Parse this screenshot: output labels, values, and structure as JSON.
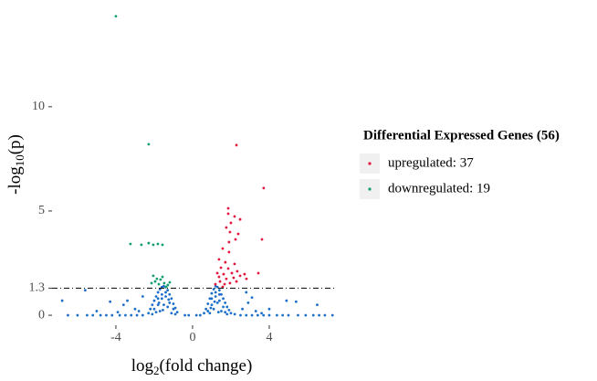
{
  "chart_data": {
    "type": "scatter",
    "xlabel": [
      "log",
      "2",
      "(fold change)"
    ],
    "ylabel": [
      "-log",
      "10",
      "(p)"
    ],
    "legend_title": "Differential Expressed Genes (56)",
    "xlim": [
      -7.33,
      7.43
    ],
    "ylim": [
      -0.48,
      14.9
    ],
    "xticks": [
      -4,
      0,
      4
    ],
    "yticks": [
      0,
      1.3,
      5,
      10
    ],
    "hline": 1.3,
    "series": [
      {
        "name": "upregulated: 37",
        "color": "#e3173e",
        "x": [
          2.29,
          3.71,
          1.86,
          1.86,
          2.19,
          2.48,
          2.0,
          1.76,
          1.95,
          2.38,
          3.62,
          1.9,
          2.24,
          1.57,
          1.9,
          1.38,
          1.71,
          2.19,
          1.48,
          1.86,
          2.33,
          1.29,
          1.62,
          2.05,
          2.71,
          3.43,
          1.38,
          1.76,
          2.14,
          2.48,
          1.43,
          1.95,
          1.19,
          1.67,
          2.29,
          2.81,
          1.57
        ],
        "y": [
          8.16,
          6.1,
          5.13,
          4.87,
          4.74,
          4.6,
          4.43,
          4.21,
          3.99,
          3.9,
          3.64,
          3.51,
          3.64,
          3.2,
          3.03,
          2.68,
          2.54,
          2.46,
          2.28,
          2.24,
          2.11,
          2.02,
          1.97,
          2.02,
          1.97,
          2.02,
          1.84,
          1.75,
          1.8,
          1.89,
          1.62,
          1.54,
          1.49,
          1.49,
          1.62,
          1.75,
          1.36
        ]
      },
      {
        "name": "downregulated: 19",
        "color": "#139e6e",
        "x": [
          -4.0,
          -2.29,
          -3.24,
          -2.67,
          -2.29,
          -2.05,
          -1.81,
          -1.57,
          -2.05,
          -1.86,
          -1.67,
          -1.48,
          -2.14,
          -1.29,
          -1.76,
          -1.95,
          -1.57,
          -1.38,
          -1.19
        ],
        "y": [
          14.34,
          8.2,
          3.42,
          3.38,
          3.46,
          3.38,
          3.42,
          3.38,
          1.89,
          1.75,
          1.71,
          1.54,
          1.54,
          1.45,
          1.49,
          1.62,
          1.84,
          1.36,
          1.58
        ]
      },
      {
        "color": "#1c6fc8",
        "x": [
          -2.3,
          -2.2,
          -2.1,
          -2.0,
          -1.9,
          -1.8,
          -1.7,
          -1.6,
          -1.5,
          -1.4,
          -1.3,
          -1.2,
          -1.1,
          -1.0,
          -0.9,
          -0.8,
          -2.0,
          -1.8,
          -1.6,
          -1.4,
          -1.2,
          -1.0,
          -1.7,
          -1.5,
          -1.3,
          -1.9,
          -1.1,
          -1.6,
          -1.4,
          -1.8,
          -2.1,
          -0.9,
          -1.55,
          -1.25,
          -1.75,
          0.6,
          0.7,
          0.8,
          0.9,
          1.0,
          1.1,
          1.2,
          1.3,
          1.4,
          1.5,
          1.6,
          1.7,
          1.8,
          1.9,
          2.0,
          0.8,
          1.0,
          1.2,
          1.4,
          1.6,
          1.1,
          1.3,
          1.5,
          0.9,
          1.7,
          1.2,
          1.0,
          1.4,
          1.8,
          2.2,
          1.35,
          1.15,
          0.95,
          -6.8,
          -5.6,
          -4.3,
          -3.6,
          -3.4,
          -3.0,
          -2.6,
          -2.8,
          2.6,
          2.9,
          3.3,
          3.6,
          4.0,
          4.9,
          5.4,
          6.5,
          -5.0,
          -3.9,
          2.8,
          3.1,
          -6.5,
          -6.0,
          -5.5,
          -5.2,
          -4.8,
          -4.5,
          -4.2,
          -3.8,
          -3.5,
          -3.2,
          -2.9,
          -2.6,
          -0.4,
          -0.2,
          0.2,
          0.4,
          2.5,
          2.8,
          3.1,
          3.4,
          3.7,
          4.0,
          4.4,
          4.7,
          5.0,
          5.5,
          5.9,
          6.3,
          6.6,
          6.9,
          7.3
        ],
        "y": [
          0.1,
          0.3,
          0.5,
          0.7,
          0.9,
          1.1,
          1.25,
          1.35,
          1.4,
          1.35,
          1.2,
          1.0,
          0.8,
          0.55,
          0.35,
          0.15,
          0.3,
          0.5,
          0.8,
          0.9,
          0.6,
          0.3,
          0.2,
          0.5,
          0.4,
          0.15,
          0.1,
          1.0,
          1.1,
          0.8,
          0.05,
          0.05,
          0.25,
          0.75,
          0.6,
          0.1,
          0.3,
          0.55,
          0.8,
          1.05,
          1.25,
          1.4,
          1.35,
          1.2,
          1.0,
          0.8,
          0.6,
          0.4,
          0.25,
          0.1,
          0.2,
          0.5,
          0.9,
          0.7,
          0.4,
          0.3,
          0.6,
          0.2,
          0.1,
          0.15,
          1.1,
          0.8,
          1.0,
          0.05,
          0.05,
          0.15,
          0.65,
          0.35,
          0.7,
          1.2,
          0.65,
          0.5,
          0.7,
          0.3,
          0.9,
          0.2,
          0.3,
          0.6,
          0.2,
          0.1,
          0.3,
          0.7,
          0.65,
          0.5,
          0.2,
          0.15,
          1.1,
          0.85,
          0,
          0,
          0,
          0,
          0,
          0,
          0,
          0,
          0,
          0,
          0,
          0,
          0,
          0,
          0,
          0,
          0,
          0,
          0,
          0,
          0,
          0,
          0,
          0,
          0,
          0,
          0,
          0,
          0,
          0,
          0
        ]
      }
    ]
  }
}
